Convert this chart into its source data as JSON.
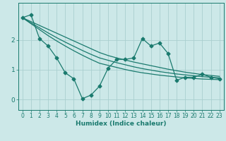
{
  "xlabel": "Humidex (Indice chaleur)",
  "bg_color": "#cce8e8",
  "grid_color": "#aacfcf",
  "line_color": "#1a7a6e",
  "x_data": [
    0,
    1,
    2,
    3,
    4,
    5,
    6,
    7,
    8,
    9,
    10,
    11,
    12,
    13,
    14,
    15,
    16,
    17,
    18,
    19,
    20,
    21,
    22,
    23
  ],
  "y_main": [
    2.75,
    2.85,
    2.05,
    1.8,
    1.4,
    0.9,
    0.7,
    0.03,
    0.15,
    0.45,
    1.05,
    1.35,
    1.35,
    1.4,
    2.05,
    1.8,
    1.9,
    1.55,
    0.65,
    0.75,
    0.75,
    0.85,
    0.75,
    0.7
  ],
  "y_trend1": [
    2.75,
    2.62,
    2.49,
    2.36,
    2.23,
    2.1,
    1.97,
    1.84,
    1.71,
    1.58,
    1.48,
    1.4,
    1.33,
    1.26,
    1.2,
    1.14,
    1.08,
    1.02,
    0.97,
    0.92,
    0.88,
    0.84,
    0.81,
    0.78
  ],
  "y_trend2": [
    2.75,
    2.58,
    2.41,
    2.24,
    2.08,
    1.93,
    1.79,
    1.65,
    1.52,
    1.4,
    1.32,
    1.24,
    1.17,
    1.1,
    1.04,
    0.99,
    0.94,
    0.9,
    0.86,
    0.83,
    0.8,
    0.77,
    0.75,
    0.73
  ],
  "y_trend3": [
    2.75,
    2.55,
    2.35,
    2.15,
    1.97,
    1.8,
    1.64,
    1.49,
    1.35,
    1.22,
    1.15,
    1.08,
    1.01,
    0.95,
    0.9,
    0.86,
    0.82,
    0.79,
    0.76,
    0.73,
    0.71,
    0.69,
    0.68,
    0.67
  ],
  "yticks": [
    0,
    1,
    2
  ],
  "ylim": [
    -0.35,
    3.25
  ],
  "xlim": [
    -0.5,
    23.5
  ],
  "tick_fontsize": 5.5,
  "label_fontsize": 6.5
}
